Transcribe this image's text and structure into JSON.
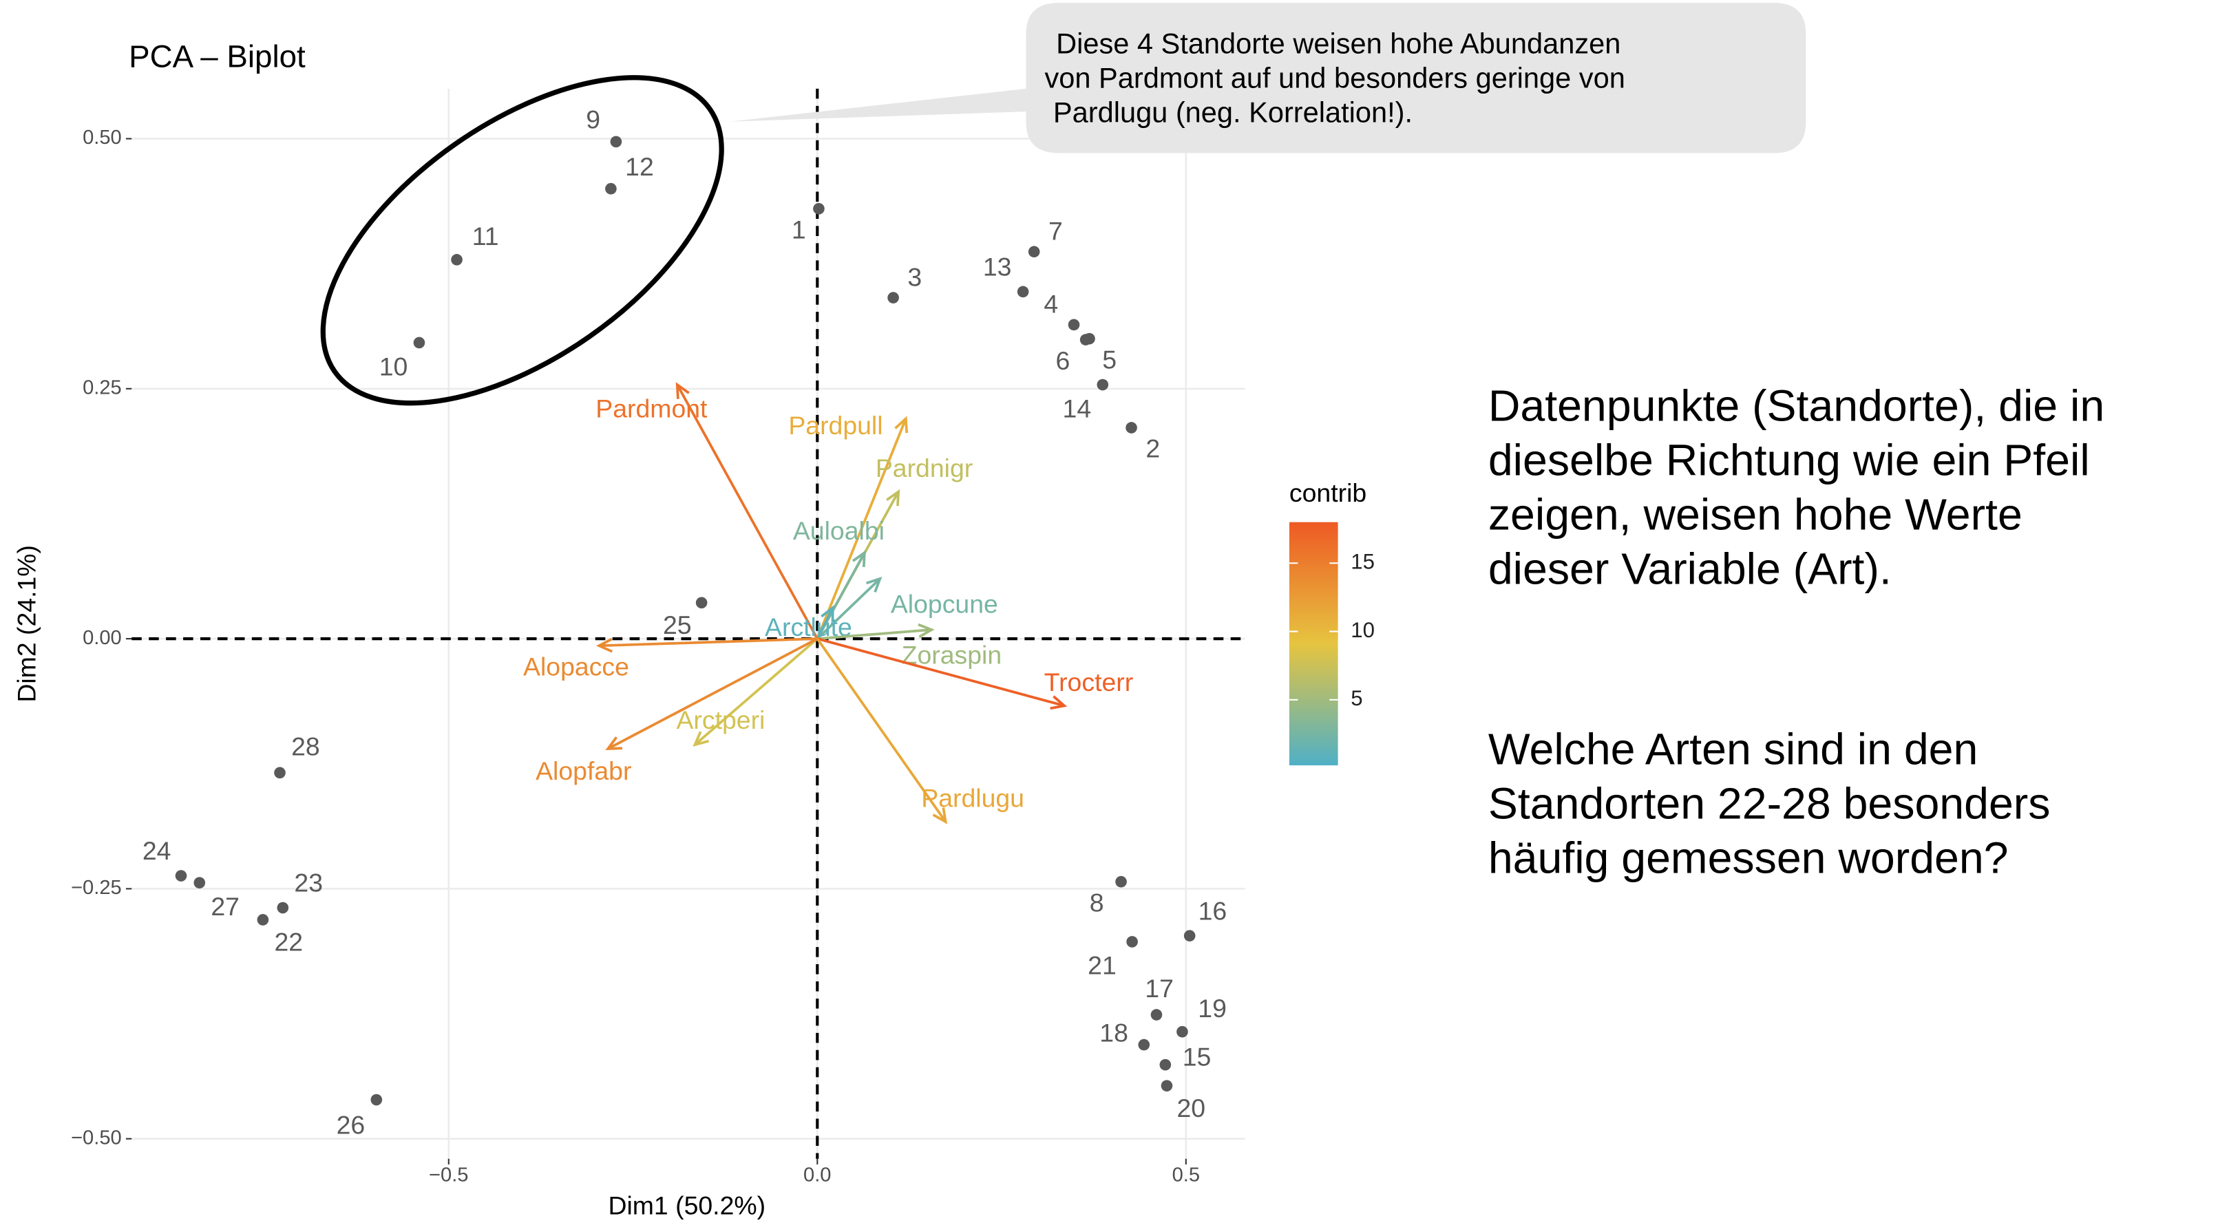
{
  "chart_data": {
    "type": "biplot",
    "title": "PCA – Biplot",
    "xlabel": "Dim1 (50.2%)",
    "ylabel": "Dim2 (24.1%)",
    "xlim": [
      -0.93,
      0.58
    ],
    "ylim": [
      -0.52,
      0.55
    ],
    "xticks": [
      {
        "value": -0.5,
        "label": "−0.5"
      },
      {
        "value": 0,
        "label": "0.0"
      },
      0.5
    ],
    "yticks": [
      {
        "value": -0.5,
        "label": "−0.50"
      },
      {
        "value": -0.25,
        "label": "−0.25"
      },
      {
        "value": 0,
        "label": "0.00"
      },
      0.25,
      {
        "value": 0.5,
        "label": "0.50"
      }
    ],
    "grid": true,
    "hline": 0,
    "vline": 0,
    "points": {
      "color": "#595959",
      "labels": [
        "9",
        "12",
        "11",
        "10",
        "1",
        "3",
        "7",
        "13",
        "4",
        "6",
        "5",
        "14",
        "2",
        "25",
        "28",
        "24",
        "27",
        "23",
        "22",
        "26",
        "8",
        "16",
        "21",
        "17",
        "19",
        "18",
        "15",
        "20"
      ],
      "x": [
        -0.273,
        -0.28,
        -0.489,
        -0.54,
        0.002,
        0.103,
        0.294,
        0.279,
        0.348,
        0.364,
        0.369,
        0.387,
        0.426,
        -0.157,
        -0.729,
        -0.863,
        -0.838,
        -0.725,
        -0.752,
        -0.598,
        0.412,
        0.505,
        0.427,
        0.46,
        0.495,
        0.443,
        0.472,
        0.474
      ],
      "y": [
        0.497,
        0.45,
        0.379,
        0.296,
        0.43,
        0.341,
        0.387,
        0.347,
        0.314,
        0.299,
        0.3,
        0.254,
        0.211,
        0.036,
        -0.134,
        -0.237,
        -0.244,
        -0.269,
        -0.281,
        -0.461,
        -0.243,
        -0.297,
        -0.303,
        -0.376,
        -0.393,
        -0.406,
        -0.426,
        -0.447
      ]
    },
    "variables": {
      "names": [
        "Pardmont",
        "Pardpull",
        "Pardnigr",
        "Auloalbi",
        "Alopcune",
        "Arctlute",
        "Zoraspin",
        "Trocterr",
        "Pardlugu",
        "Arctperi",
        "Alopfabr",
        "Alopacce"
      ],
      "x": [
        -0.19,
        0.12,
        0.11,
        0.064,
        0.085,
        0.021,
        0.155,
        0.335,
        0.174,
        -0.166,
        -0.284,
        -0.296
      ],
      "y": [
        0.254,
        0.22,
        0.147,
        0.086,
        0.06,
        0.031,
        0.009,
        -0.067,
        -0.183,
        -0.106,
        -0.11,
        -0.007
      ],
      "contrib": [
        16,
        11,
        7,
        3,
        2.5,
        1,
        5,
        17.5,
        11.5,
        8,
        14,
        14
      ]
    },
    "color_scale": {
      "title": "contrib",
      "lim": [
        0.2,
        18
      ],
      "ticks": [
        5,
        10,
        15
      ],
      "colors": [
        "#4fb0c6",
        "#e6c440",
        "#ee5a24"
      ]
    },
    "callout": {
      "lines": [
        "Diese 4 Standorte weisen hohe Abundanzen",
        "von Pardmont auf und besonders geringe von",
        "Pardlugu (neg. Korrelation!)."
      ]
    }
  },
  "side_text": {
    "paragraphs": [
      {
        "lines": [
          "Datenpunkte (Standorte), die in",
          "dieselbe Richtung wie ein Pfeil",
          "zeigen, weisen hohe Werte",
          "dieser Variable (Art)."
        ]
      },
      {
        "lines": [
          "Welche Arten sind in den",
          "Standorten 22-28 besonders",
          "häufig gemessen worden?"
        ]
      }
    ]
  }
}
